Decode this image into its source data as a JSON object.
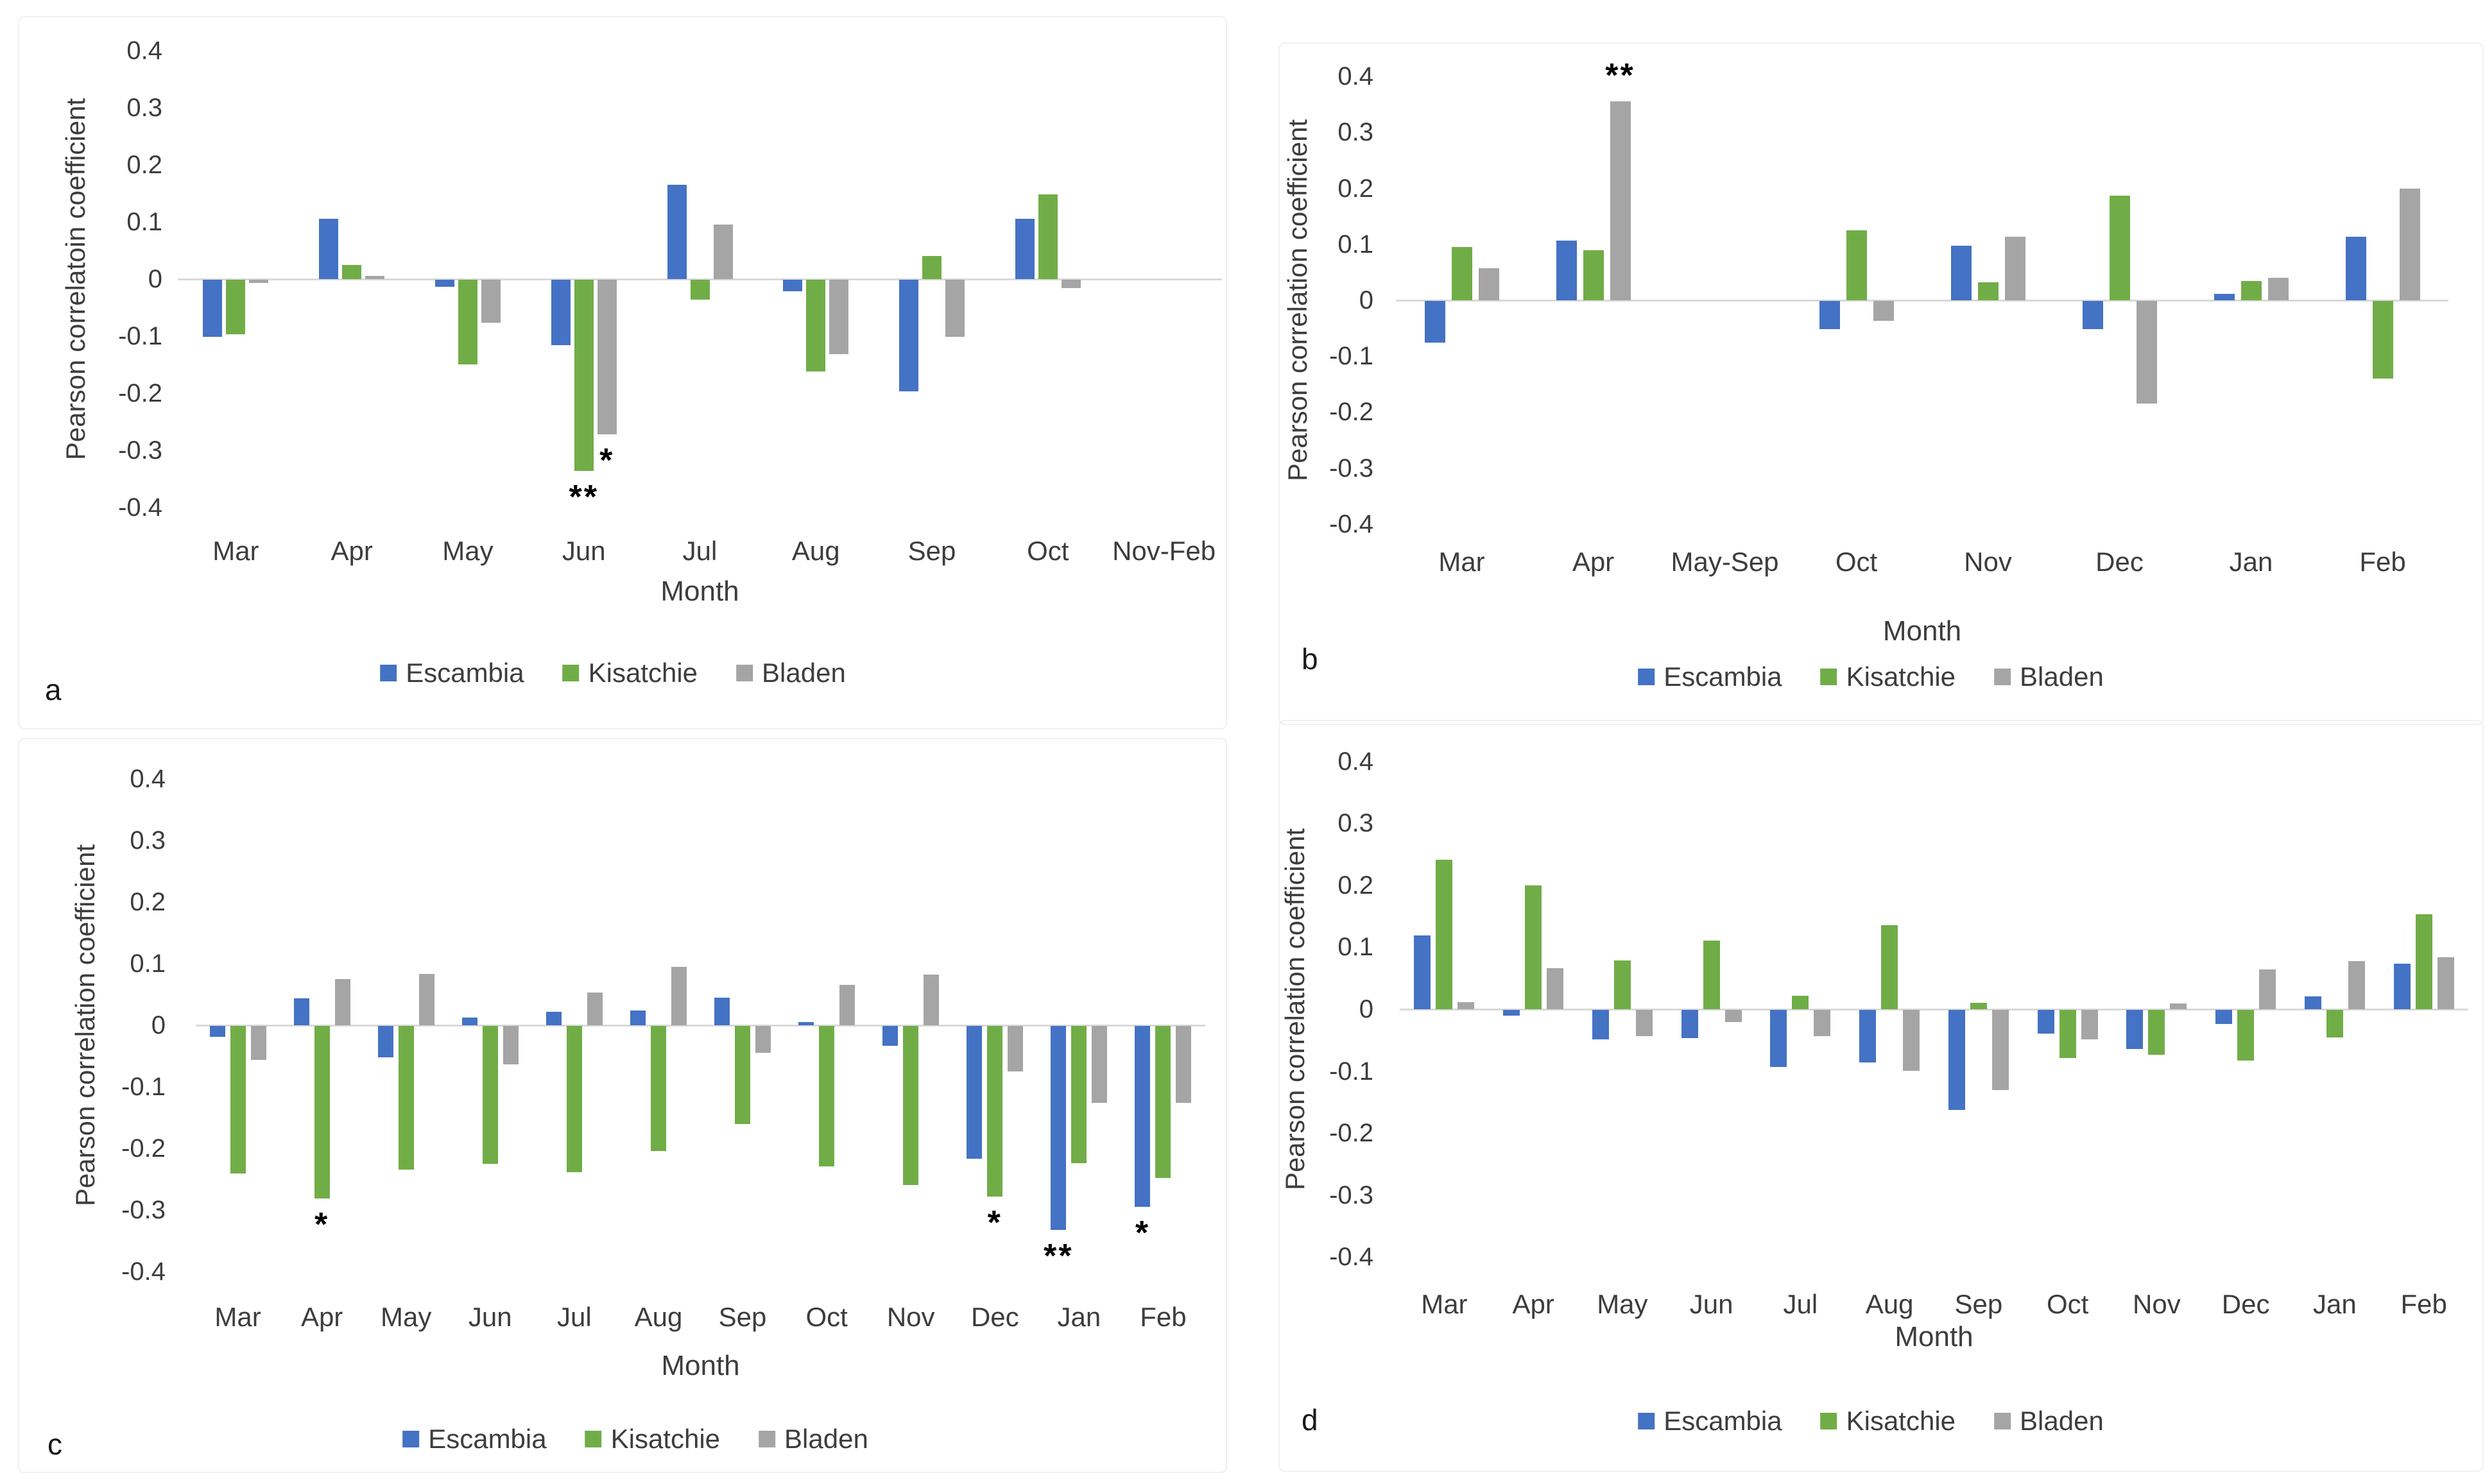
{
  "figure": {
    "description": "Four-panel bar chart figure of monthly Pearson correlation coefficients for three sites",
    "panel_letters": [
      "a",
      "b",
      "c",
      "d"
    ],
    "colors": {
      "escambia_blue": "#4472C4",
      "kisatchie_green": "#70AD47",
      "bladen_gray": "#A5A5A5",
      "axis_line": "#D9D9D9",
      "text": "#3d3d3d"
    }
  },
  "chart_data": [
    {
      "type": "bar",
      "panel_label": "a",
      "ylabel": "Pearson correlatoin coefficient",
      "xlabel": "Month",
      "ylim": [
        -0.4,
        0.4
      ],
      "yticks": [
        0.4,
        0.3,
        0.2,
        0.1,
        0,
        -0.1,
        -0.2,
        -0.3,
        -0.4
      ],
      "grid": false,
      "legend_position": "bottom",
      "categories": [
        "Mar",
        "Apr",
        "May",
        "Jun",
        "Jul",
        "Aug",
        "Sep",
        "Oct",
        "Nov-Feb"
      ],
      "series": [
        {
          "name": "Escambia",
          "color": "#4472C4",
          "values": [
            -0.1,
            0.105,
            -0.012,
            -0.115,
            0.165,
            -0.02,
            -0.195,
            0.105,
            null
          ]
        },
        {
          "name": "Kisatchie",
          "color": "#70AD47",
          "values": [
            -0.095,
            0.025,
            -0.148,
            -0.335,
            -0.035,
            -0.16,
            0.04,
            0.148,
            null
          ]
        },
        {
          "name": "Bladen",
          "color": "#A5A5A5",
          "values": [
            -0.006,
            0.006,
            -0.075,
            -0.27,
            0.095,
            -0.13,
            -0.1,
            -0.015,
            null
          ]
        }
      ],
      "annotations": [
        {
          "category": "Jun",
          "series": "Kisatchie",
          "text": "**"
        },
        {
          "category": "Jun",
          "series": "Bladen",
          "text": "*"
        }
      ]
    },
    {
      "type": "bar",
      "panel_label": "b",
      "ylabel": "Pearson correlation coefficient",
      "xlabel": "Month",
      "ylim": [
        -0.4,
        0.4
      ],
      "yticks": [
        0.4,
        0.3,
        0.2,
        0.1,
        0,
        -0.1,
        -0.2,
        -0.3,
        -0.4
      ],
      "grid": false,
      "legend_position": "bottom",
      "categories": [
        "Mar",
        "Apr",
        "May-Sep",
        "Oct",
        "Nov",
        "Dec",
        "Jan",
        "Feb"
      ],
      "series": [
        {
          "name": "Escambia",
          "color": "#4472C4",
          "values": [
            -0.075,
            0.107,
            null,
            -0.05,
            0.097,
            -0.05,
            0.012,
            0.113
          ]
        },
        {
          "name": "Kisatchie",
          "color": "#70AD47",
          "values": [
            0.095,
            0.09,
            null,
            0.125,
            0.032,
            0.187,
            0.034,
            -0.139
          ]
        },
        {
          "name": "Bladen",
          "color": "#A5A5A5",
          "values": [
            0.057,
            0.355,
            null,
            -0.035,
            0.113,
            -0.183,
            0.04,
            0.2
          ]
        }
      ],
      "annotations": [
        {
          "category": "Apr",
          "series": "Bladen",
          "text": "**"
        }
      ]
    },
    {
      "type": "bar",
      "panel_label": "c",
      "ylabel": "Pearson correlation coefficient",
      "xlabel": "Month",
      "ylim": [
        -0.4,
        0.4
      ],
      "yticks": [
        0.4,
        0.3,
        0.2,
        0.1,
        0,
        -0.1,
        -0.2,
        -0.3,
        -0.4
      ],
      "grid": false,
      "legend_position": "bottom",
      "categories": [
        "Mar",
        "Apr",
        "May",
        "Jun",
        "Jul",
        "Aug",
        "Sep",
        "Oct",
        "Nov",
        "Dec",
        "Jan",
        "Feb"
      ],
      "series": [
        {
          "name": "Escambia",
          "color": "#4472C4",
          "values": [
            -0.018,
            0.044,
            -0.051,
            0.012,
            0.022,
            0.024,
            0.045,
            0.005,
            -0.032,
            -0.216,
            -0.331,
            -0.294
          ]
        },
        {
          "name": "Kisatchie",
          "color": "#70AD47",
          "values": [
            -0.24,
            -0.28,
            -0.233,
            -0.224,
            -0.238,
            -0.203,
            -0.159,
            -0.228,
            -0.258,
            -0.277,
            -0.223,
            -0.247
          ]
        },
        {
          "name": "Bladen",
          "color": "#A5A5A5",
          "values": [
            -0.055,
            0.075,
            0.083,
            -0.062,
            0.053,
            0.095,
            -0.044,
            0.066,
            0.082,
            -0.074,
            -0.125,
            -0.125
          ]
        }
      ],
      "annotations": [
        {
          "category": "Apr",
          "series": "Kisatchie",
          "text": "*"
        },
        {
          "category": "Dec",
          "series": "Kisatchie",
          "text": "*"
        },
        {
          "category": "Jan",
          "series": "Escambia",
          "text": "**"
        },
        {
          "category": "Feb",
          "series": "Escambia",
          "text": "*"
        }
      ]
    },
    {
      "type": "bar",
      "panel_label": "d",
      "ylabel": "Pearson correlation coefficient",
      "xlabel": "Month",
      "ylim": [
        -0.4,
        0.4
      ],
      "yticks": [
        0.4,
        0.3,
        0.2,
        0.1,
        0,
        -0.1,
        -0.2,
        -0.3,
        -0.4
      ],
      "grid": false,
      "legend_position": "bottom",
      "categories": [
        "Mar",
        "Apr",
        "May",
        "Jun",
        "Jul",
        "Aug",
        "Sep",
        "Oct",
        "Nov",
        "Dec",
        "Jan",
        "Feb"
      ],
      "series": [
        {
          "name": "Escambia",
          "color": "#4472C4",
          "values": [
            0.119,
            -0.009,
            -0.048,
            -0.046,
            -0.092,
            -0.085,
            -0.161,
            -0.038,
            -0.063,
            -0.023,
            0.021,
            0.074
          ]
        },
        {
          "name": "Kisatchie",
          "color": "#70AD47",
          "values": [
            0.241,
            0.2,
            0.079,
            0.111,
            0.022,
            0.136,
            0.01,
            -0.078,
            -0.072,
            -0.082,
            -0.044,
            0.153
          ]
        },
        {
          "name": "Bladen",
          "color": "#A5A5A5",
          "values": [
            0.011,
            0.066,
            -0.042,
            -0.02,
            -0.042,
            -0.098,
            -0.129,
            -0.048,
            0.009,
            0.064,
            0.078,
            0.084
          ]
        }
      ],
      "annotations": []
    }
  ]
}
